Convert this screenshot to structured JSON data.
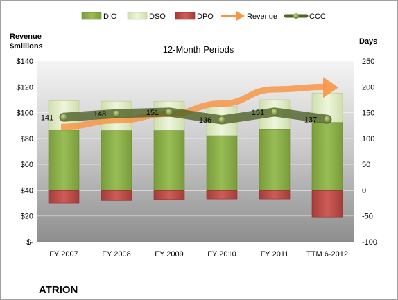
{
  "chart_data": {
    "type": "bar",
    "subtitle": "12-Month Periods",
    "company": "ATRION",
    "y_left_label": [
      "Revenue",
      "$millions"
    ],
    "y_right_label": "Days",
    "categories": [
      "FY 2007",
      "FY 2008",
      "FY 2009",
      "FY 2010",
      "FY 2011",
      "TTM 6-2012"
    ],
    "y_left": {
      "min": 0,
      "max": 140,
      "ticks": [
        0,
        20,
        40,
        60,
        80,
        100,
        120,
        140
      ],
      "tick_labels": [
        "$-",
        "$20",
        "$40",
        "$60",
        "$80",
        "$100",
        "$120",
        "$140"
      ]
    },
    "y_right": {
      "min": -100,
      "max": 250,
      "ticks": [
        -100,
        -50,
        0,
        50,
        100,
        150,
        200,
        250
      ],
      "tick_labels": [
        "-100",
        "-50",
        "0",
        "50",
        "100",
        "150",
        "200",
        "250"
      ]
    },
    "legend": [
      {
        "name": "DIO",
        "kind": "bar",
        "color": "#8db04c"
      },
      {
        "name": "DSO",
        "kind": "bar",
        "color": "#dceac0"
      },
      {
        "name": "DPO",
        "kind": "bar",
        "color": "#c0504d"
      },
      {
        "name": "Revenue",
        "kind": "arrow",
        "color": "#f79646"
      },
      {
        "name": "CCC",
        "kind": "line",
        "color": "#4f6228"
      }
    ],
    "legend_position": "top",
    "series": [
      {
        "name": "DIO",
        "axis": "right",
        "values": [
          116,
          115,
          115,
          105,
          118,
          131
        ]
      },
      {
        "name": "DSO",
        "axis": "right",
        "values": [
          57,
          57,
          57,
          57,
          57,
          57
        ]
      },
      {
        "name": "DPO",
        "axis": "right",
        "values": [
          -25,
          -20,
          -18,
          -17,
          -17,
          -52
        ]
      },
      {
        "name": "CCC",
        "axis": "right",
        "values": [
          141,
          148,
          151,
          136,
          151,
          137
        ],
        "data_labels": [
          "141",
          "148",
          "151",
          "136",
          "151",
          "137"
        ]
      },
      {
        "name": "Revenue",
        "axis": "left",
        "values": [
          89,
          94,
          99,
          107,
          118,
          120
        ]
      }
    ]
  }
}
